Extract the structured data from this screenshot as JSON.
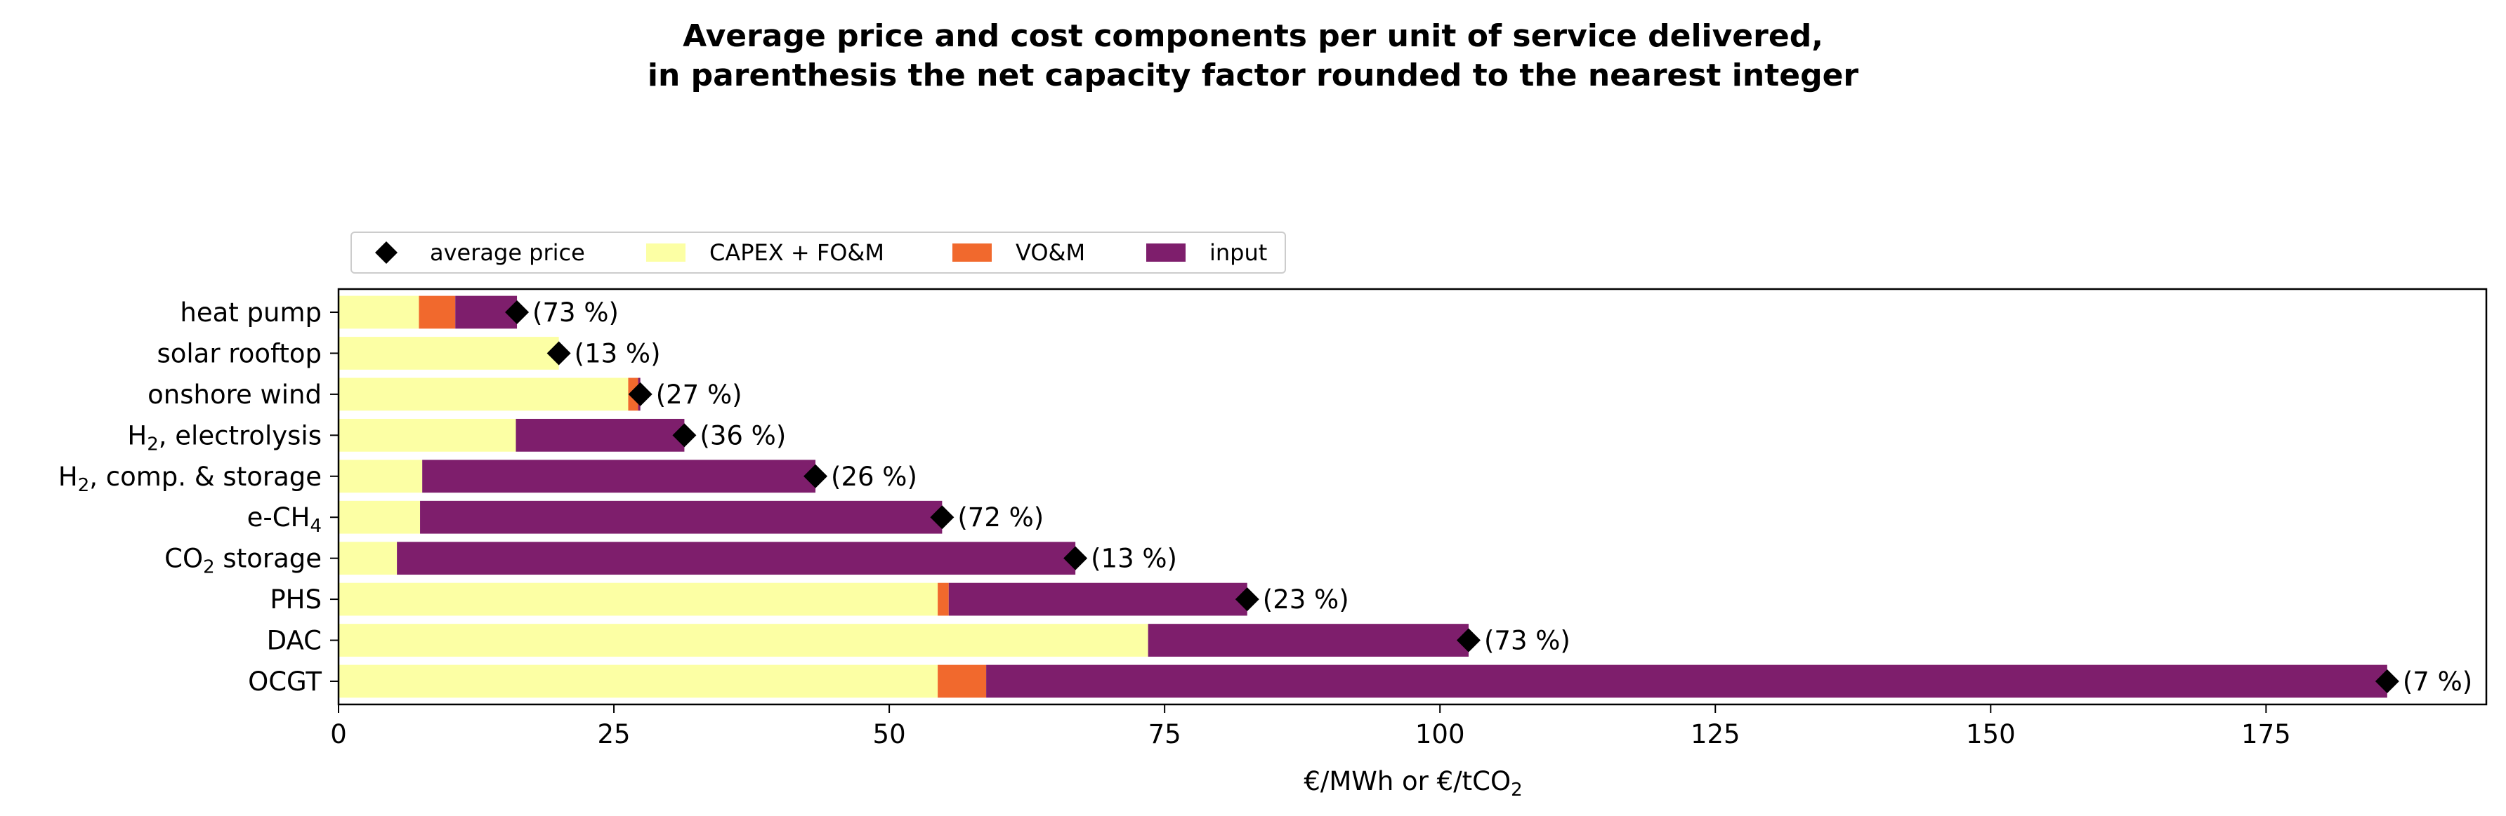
{
  "chart_data": {
    "type": "bar",
    "orientation": "horizontal",
    "stacked": true,
    "title": [
      "Average price and cost components per unit of service delivered,",
      "in parenthesis the net capacity factor rounded to the nearest integer"
    ],
    "xlabel": {
      "text": "€/MWh or €/tCO",
      "sub": "2"
    },
    "xlim": [
      0,
      195
    ],
    "xticks": [
      0,
      25,
      50,
      75,
      100,
      125,
      150,
      175
    ],
    "grid": false,
    "legend_position": "top-left, above plot",
    "legend": [
      {
        "key": "average_price",
        "label": "average price",
        "marker": "diamond",
        "color": "#000000"
      },
      {
        "key": "capex",
        "label": "CAPEX + FO&M",
        "marker": "patch",
        "color": "#fcffa4"
      },
      {
        "key": "vom",
        "label": "VO&M",
        "marker": "patch",
        "color": "#f1692d"
      },
      {
        "key": "input",
        "label": "input",
        "marker": "patch",
        "color": "#7e1e6c"
      }
    ],
    "categories": [
      {
        "label": "heat pump",
        "base": "heat pump",
        "sub": "",
        "rest": ""
      },
      {
        "label": "solar rooftop",
        "base": "solar rooftop",
        "sub": "",
        "rest": ""
      },
      {
        "label": "onshore wind",
        "base": "onshore wind",
        "sub": "",
        "rest": ""
      },
      {
        "label": "H2, electrolysis",
        "base": "H",
        "sub": "2",
        "rest": ", electrolysis"
      },
      {
        "label": "H2, comp. & storage",
        "base": "H",
        "sub": "2",
        "rest": ", comp. & storage"
      },
      {
        "label": "e-CH4",
        "base": "e-CH",
        "sub": "4",
        "rest": ""
      },
      {
        "label": "CO2 storage",
        "base": "CO",
        "sub": "2",
        "rest": " storage"
      },
      {
        "label": "PHS",
        "base": "PHS",
        "sub": "",
        "rest": ""
      },
      {
        "label": "DAC",
        "base": "DAC",
        "sub": "",
        "rest": ""
      },
      {
        "label": "OCGT",
        "base": "OCGT",
        "sub": "",
        "rest": ""
      }
    ],
    "series": [
      {
        "key": "capex",
        "name": "CAPEX + FO&M",
        "color": "#fcffa4",
        "values": [
          7.3,
          20.0,
          26.3,
          16.1,
          7.6,
          7.4,
          5.3,
          54.4,
          73.5,
          54.4
        ]
      },
      {
        "key": "vom",
        "name": "VO&M",
        "color": "#f1692d",
        "values": [
          3.3,
          0.0,
          0.9,
          0.0,
          0.0,
          0.0,
          0.0,
          1.0,
          0.0,
          4.4
        ]
      },
      {
        "key": "input",
        "name": "input",
        "color": "#7e1e6c",
        "values": [
          5.6,
          0.0,
          0.2,
          15.3,
          35.7,
          47.4,
          61.6,
          27.1,
          29.1,
          127.2
        ]
      }
    ],
    "average_price": [
      16.2,
      20.0,
      27.4,
      31.4,
      43.3,
      54.8,
      66.9,
      82.5,
      102.6,
      186.0
    ],
    "capacity_factor_labels": [
      "(73 %)",
      "(13 %)",
      "(27 %)",
      "(36 %)",
      "(26 %)",
      "(72 %)",
      "(13 %)",
      "(23 %)",
      "(73 %)",
      "(7 %)"
    ]
  }
}
